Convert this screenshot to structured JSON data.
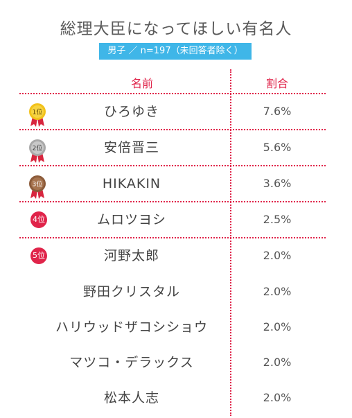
{
  "title": "総理大臣になってほしい有名人",
  "subtitle": "男子 ／ n=197（未回答者除く）",
  "headers": {
    "name": "名前",
    "pct": "割合"
  },
  "rows": [
    {
      "rank": "1位",
      "name": "ひろゆき",
      "pct": "7.6%"
    },
    {
      "rank": "2位",
      "name": "安倍晋三",
      "pct": "5.6%"
    },
    {
      "rank": "3位",
      "name": "HIKAKIN",
      "pct": "3.6%"
    },
    {
      "rank": "4位",
      "name": "ムロツヨシ",
      "pct": "2.5%"
    },
    {
      "rank": "5位",
      "name": "河野太郎",
      "pct": "2.0%"
    },
    {
      "rank": "",
      "name": "野田クリスタル",
      "pct": "2.0%"
    },
    {
      "rank": "",
      "name": "ハリウッドザコシショウ",
      "pct": "2.0%"
    },
    {
      "rank": "",
      "name": "マツコ・デラックス",
      "pct": "2.0%"
    },
    {
      "rank": "",
      "name": "松本人志",
      "pct": "2.0%"
    }
  ],
  "colors": {
    "accent": "#e0244a",
    "subtitle_bg": "#3fb6e8",
    "gold": "#f2c21a",
    "silver": "#b8b8b8",
    "bronze": "#a7744f"
  }
}
